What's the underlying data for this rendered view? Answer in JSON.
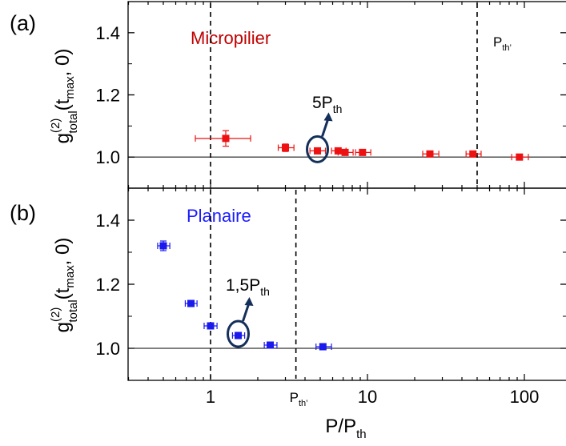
{
  "chart_data": [
    {
      "panel_label": "(a)",
      "type": "scatter",
      "title": "Micropilier",
      "title_color": "#c00000",
      "ylabel": "g(2)total(tmax, 0)",
      "ylabel_parts": {
        "g": "g",
        "sup": "(2)",
        "sub": "total",
        "args_open": "(t",
        "args_sub": "max",
        "args_close": ", 0)"
      },
      "xscale": "log",
      "xlim": [
        0.3,
        200
      ],
      "ylim": [
        0.9,
        1.5
      ],
      "yticks": [
        "1.0",
        "1.2",
        "1.4"
      ],
      "ytick_values": [
        1.0,
        1.2,
        1.4
      ],
      "marker_color": "#ee1111",
      "reference_line_y": 1.0,
      "vlines": [
        {
          "x": 1,
          "label": ""
        },
        {
          "x": 50,
          "label": "Pth’",
          "label_main": "P",
          "label_sub": "th’"
        }
      ],
      "points": [
        {
          "x": 1.25,
          "y": 1.06,
          "xerr_low": 0.45,
          "xerr_high": 0.55,
          "yerr": 0.025
        },
        {
          "x": 3.0,
          "y": 1.03,
          "xerr_low": 0.3,
          "xerr_high": 0.4,
          "yerr": 0.012
        },
        {
          "x": 4.8,
          "y": 1.02,
          "xerr_low": 0.5,
          "xerr_high": 0.6,
          "yerr": 0.008
        },
        {
          "x": 6.5,
          "y": 1.02,
          "xerr_low": 0.6,
          "xerr_high": 0.8,
          "yerr": 0.006
        },
        {
          "x": 7.2,
          "y": 1.015,
          "xerr_low": 0.7,
          "xerr_high": 0.9,
          "yerr": 0.006
        },
        {
          "x": 9.3,
          "y": 1.015,
          "xerr_low": 0.9,
          "xerr_high": 1.2,
          "yerr": 0.006
        },
        {
          "x": 25,
          "y": 1.01,
          "xerr_low": 2.5,
          "xerr_high": 3.5,
          "yerr": 0.006
        },
        {
          "x": 47,
          "y": 1.01,
          "xerr_low": 4.5,
          "xerr_high": 6,
          "yerr": 0.006
        },
        {
          "x": 93,
          "y": 1.0,
          "xerr_low": 10,
          "xerr_high": 13,
          "yerr": 0.006
        }
      ],
      "annotation": {
        "text": "5Pth",
        "main": "5P",
        "sub": "th",
        "target_x": 4.8,
        "target_y": 1.02
      }
    },
    {
      "panel_label": "(b)",
      "type": "scatter",
      "title": "Planaire",
      "title_color": "#1a1aff",
      "ylabel": "g(2)total(tmax, 0)",
      "ylabel_parts": {
        "g": "g",
        "sup": "(2)",
        "sub": "total",
        "args_open": "(t",
        "args_sub": "max",
        "args_close": ", 0)"
      },
      "xlabel": "P/Pth",
      "xlabel_parts": {
        "main": "P/P",
        "sub": "th"
      },
      "xscale": "log",
      "xlim": [
        0.3,
        200
      ],
      "ylim": [
        0.9,
        1.5
      ],
      "xticks": [
        "1",
        "10",
        "100"
      ],
      "xtick_values": [
        1,
        10,
        100
      ],
      "yticks": [
        "1.0",
        "1.2",
        "1.4"
      ],
      "ytick_values": [
        1.0,
        1.2,
        1.4
      ],
      "marker_color": "#1a1aee",
      "reference_line_y": 1.0,
      "vlines": [
        {
          "x": 1,
          "label": ""
        },
        {
          "x": 3.5,
          "label": "Pth’",
          "label_main": "P",
          "label_sub": "th’"
        }
      ],
      "points": [
        {
          "x": 0.5,
          "y": 1.32,
          "xerr_low": 0.04,
          "xerr_high": 0.05,
          "yerr": 0.015
        },
        {
          "x": 0.75,
          "y": 1.14,
          "xerr_low": 0.06,
          "xerr_high": 0.07,
          "yerr": 0.008
        },
        {
          "x": 1.0,
          "y": 1.07,
          "xerr_low": 0.09,
          "xerr_high": 0.1,
          "yerr": 0.008
        },
        {
          "x": 1.5,
          "y": 1.04,
          "xerr_low": 0.12,
          "xerr_high": 0.15,
          "yerr": 0.006
        },
        {
          "x": 2.4,
          "y": 1.01,
          "xerr_low": 0.2,
          "xerr_high": 0.25,
          "yerr": 0.006
        },
        {
          "x": 5.2,
          "y": 1.005,
          "xerr_low": 0.5,
          "xerr_high": 0.7,
          "yerr": 0.006
        }
      ],
      "annotation": {
        "text": "1,5Pth",
        "main": "1,5P",
        "sub": "th",
        "target_x": 1.5,
        "target_y": 1.04
      }
    }
  ],
  "colors": {
    "axis": "#000000",
    "arrow": "#14305a",
    "refline": "#000000"
  }
}
